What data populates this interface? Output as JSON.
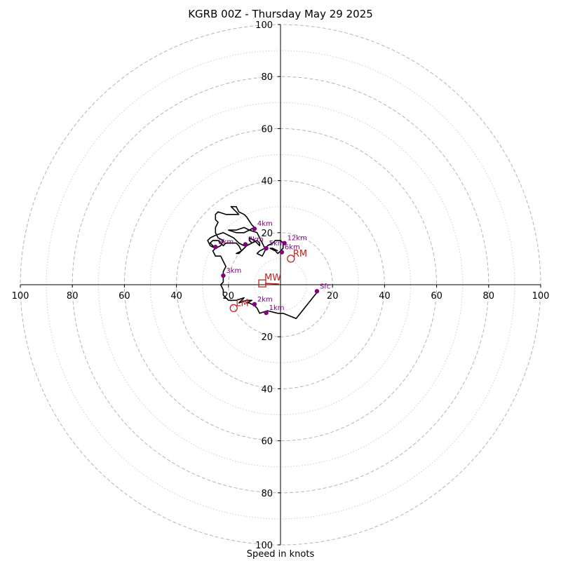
{
  "chart_data": {
    "type": "hodograph",
    "title": "KGRB 00Z - Thursday May 29 2025",
    "xlabel": "Speed in knots",
    "units": "knots",
    "range": [
      -100,
      100
    ],
    "ring_spacing": 20,
    "minor_ring_spacing": 10,
    "tick_labels": {
      "x": [
        "100",
        "80",
        "60",
        "40",
        "20",
        "20",
        "40",
        "60",
        "80",
        "100"
      ],
      "y": [
        "100",
        "80",
        "60",
        "40",
        "20",
        "20",
        "40",
        "60",
        "80",
        "100"
      ]
    },
    "colors": {
      "trace": "#000000",
      "height_marker": "#800080",
      "storm_motion": "#c0221c",
      "rings": "#b0b0b0"
    },
    "trace": [
      [
        14,
        -3
      ],
      [
        6,
        -13
      ],
      [
        1,
        -11
      ],
      [
        -1,
        -11
      ],
      [
        -5,
        -10
      ],
      [
        -8,
        -11
      ],
      [
        -9,
        -9
      ],
      [
        -10,
        -8
      ],
      [
        -12,
        -7
      ],
      [
        -13,
        -7
      ],
      [
        -11,
        -6
      ],
      [
        -13,
        -6
      ],
      [
        -16,
        -7
      ],
      [
        -14,
        -5
      ],
      [
        -17,
        -6
      ],
      [
        -20,
        -6
      ],
      [
        -21,
        -5
      ],
      [
        -22,
        -4
      ],
      [
        -22,
        -2
      ],
      [
        -23,
        0
      ],
      [
        -22,
        1
      ],
      [
        -22,
        3
      ],
      [
        -22,
        5
      ],
      [
        -21,
        7
      ],
      [
        -22,
        9
      ],
      [
        -23,
        11
      ],
      [
        -25,
        11
      ],
      [
        -26,
        13
      ],
      [
        -25,
        14
      ],
      [
        -26,
        15
      ],
      [
        -27,
        16
      ],
      [
        -26,
        17
      ],
      [
        -24,
        17
      ],
      [
        -23,
        16
      ],
      [
        -22,
        15
      ],
      [
        -21,
        16
      ],
      [
        -19,
        16
      ],
      [
        -17,
        16
      ],
      [
        -16,
        15
      ],
      [
        -15,
        13
      ],
      [
        -16,
        12
      ],
      [
        -17,
        12
      ],
      [
        -15,
        13
      ],
      [
        -13,
        15
      ],
      [
        -11,
        16
      ],
      [
        -12,
        17
      ],
      [
        -12,
        18
      ],
      [
        -10,
        17
      ],
      [
        -9,
        16
      ],
      [
        -8,
        15
      ],
      [
        -8,
        16
      ],
      [
        -9,
        17
      ],
      [
        -11,
        16
      ],
      [
        -13,
        15
      ],
      [
        -14,
        15
      ],
      [
        -16,
        16
      ],
      [
        -18,
        18
      ],
      [
        -20,
        19
      ],
      [
        -22,
        20
      ],
      [
        -25,
        19
      ],
      [
        -27,
        18
      ],
      [
        -28,
        17
      ],
      [
        -27,
        15
      ],
      [
        -25,
        14
      ],
      [
        -23,
        15
      ],
      [
        -22,
        17
      ],
      [
        -24,
        18
      ],
      [
        -25,
        20
      ],
      [
        -25,
        22
      ],
      [
        -24,
        24
      ],
      [
        -25,
        25
      ],
      [
        -25,
        27
      ],
      [
        -24,
        28
      ],
      [
        -21,
        27
      ],
      [
        -19,
        27
      ],
      [
        -16,
        27
      ],
      [
        -17,
        28
      ],
      [
        -19,
        30
      ],
      [
        -17,
        30
      ],
      [
        -16,
        28
      ],
      [
        -14,
        27
      ],
      [
        -13,
        26
      ],
      [
        -11,
        23
      ],
      [
        -10,
        22
      ],
      [
        -12,
        21
      ],
      [
        -14,
        22
      ],
      [
        -17,
        21
      ],
      [
        -20,
        21
      ],
      [
        -17,
        20
      ],
      [
        -14,
        20
      ],
      [
        -12,
        21
      ],
      [
        -9,
        20
      ],
      [
        -8,
        18
      ],
      [
        -7,
        16
      ],
      [
        -6,
        14
      ],
      [
        -8,
        13
      ],
      [
        -9,
        12
      ],
      [
        -7,
        11
      ],
      [
        -6,
        13
      ],
      [
        -5,
        15
      ],
      [
        -3,
        16
      ],
      [
        -2,
        17
      ],
      [
        0,
        17
      ],
      [
        1,
        16
      ],
      [
        1,
        14
      ],
      [
        0,
        13
      ],
      [
        -1,
        12
      ],
      [
        -2,
        13
      ],
      [
        -4,
        14
      ],
      [
        -3,
        14
      ],
      [
        -1,
        13
      ]
    ],
    "height_labels": [
      {
        "label": "Sfc",
        "u": 14,
        "v": -2.5
      },
      {
        "label": "1km",
        "u": -5.5,
        "v": -10.8
      },
      {
        "label": "2km",
        "u": -10,
        "v": -7.5
      },
      {
        "label": "3km",
        "u": -22,
        "v": 3.5
      },
      {
        "label": "4km",
        "u": -10,
        "v": 21.5
      },
      {
        "label": "5km",
        "u": -5.5,
        "v": 14
      },
      {
        "label": "6km",
        "u": 0.5,
        "v": 12.5
      },
      {
        "label": "7km",
        "u": -13.5,
        "v": 15.5
      },
      {
        "label": "8km",
        "u": -25,
        "v": 14.5
      },
      {
        "label": "12km",
        "u": 1.5,
        "v": 16
      }
    ],
    "storm_motion": [
      {
        "label": "RM",
        "u": 4,
        "v": 10,
        "marker": "circle"
      },
      {
        "label": "LM",
        "u": -18,
        "v": -9,
        "marker": "circle"
      },
      {
        "label": "MW",
        "u": -7,
        "v": 0.5,
        "marker": "square"
      }
    ]
  }
}
